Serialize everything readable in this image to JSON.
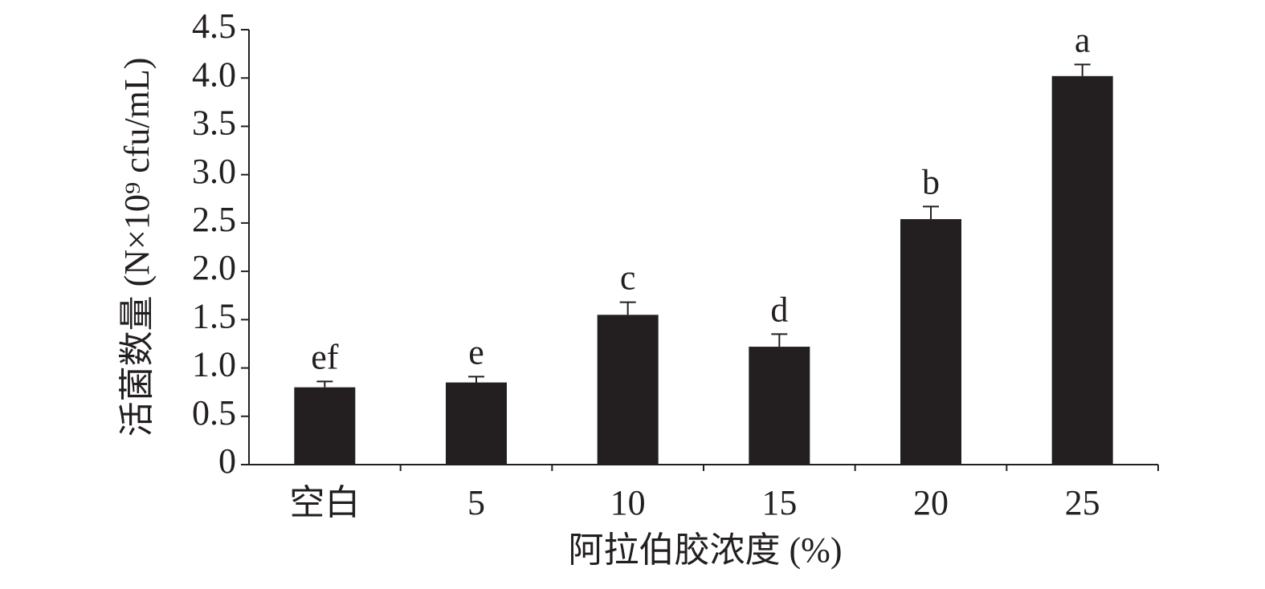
{
  "chart_data": {
    "type": "bar",
    "x_label": "阿拉伯胶浓度 (%)",
    "y_label": "活菌数量 (N×10⁹ cfu/mL)",
    "categories": [
      "空白",
      "5",
      "10",
      "15",
      "20",
      "25"
    ],
    "values": [
      0.8,
      0.85,
      1.55,
      1.22,
      2.54,
      4.02
    ],
    "errors": [
      0.06,
      0.06,
      0.13,
      0.13,
      0.13,
      0.12
    ],
    "significance_labels": [
      "ef",
      "e",
      "c",
      "d",
      "b",
      "a"
    ],
    "color": "#231f20",
    "ylim": [
      0,
      4.5
    ],
    "yticks": [
      0,
      0.5,
      {
        "value": 1,
        "label": "1.0"
      },
      1.5,
      {
        "value": 2,
        "label": "2.0"
      },
      2.5,
      {
        "value": 3,
        "label": "3.0"
      },
      3.5,
      {
        "value": 4,
        "label": "4.0"
      },
      4.5
    ],
    "grid": false
  }
}
